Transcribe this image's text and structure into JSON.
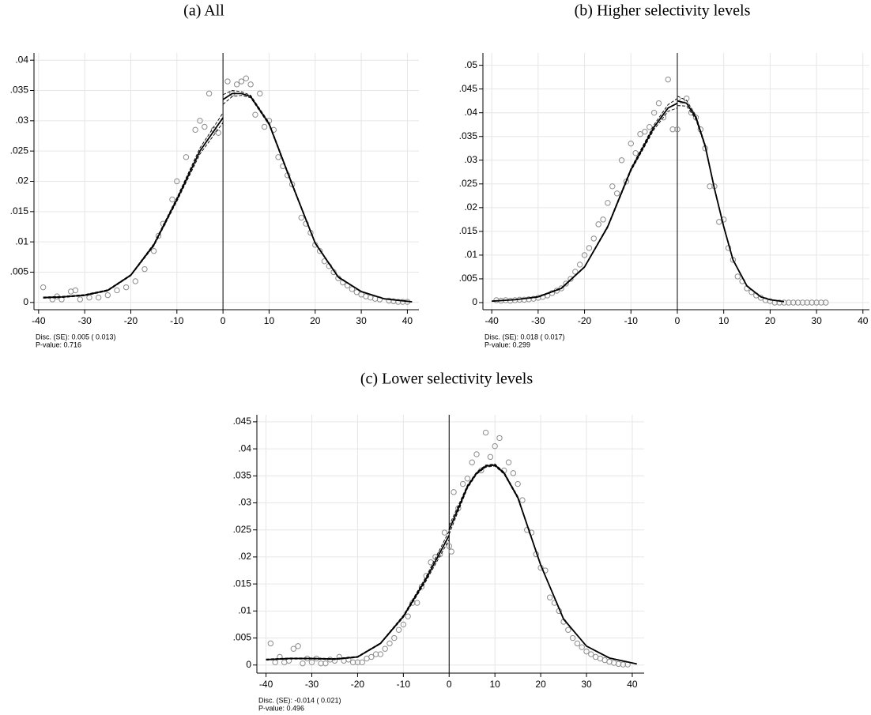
{
  "chart_data": [
    {
      "type": "scatter",
      "title": "(a) All",
      "notes": [
        "Disc. (SE):  0.005 ( 0.013)",
        "P-value:  0.716"
      ],
      "xlim": [
        -41,
        42.5
      ],
      "ylim": [
        -0.0012,
        0.0412
      ],
      "xticks": [
        -40,
        -30,
        -20,
        -10,
        0,
        10,
        20,
        30,
        40
      ],
      "yticks": [
        0,
        {
          "value": 0.005,
          "label": ".005"
        },
        {
          "value": 0.01,
          "label": ".01"
        },
        {
          "value": 0.015,
          "label": ".015"
        },
        {
          "value": 0.02,
          "label": ".02"
        },
        {
          "value": 0.025,
          "label": ".025"
        },
        {
          "value": 0.03,
          "label": ".03"
        },
        {
          "value": 0.035,
          "label": ".035"
        },
        {
          "value": 0.04,
          "label": ".04"
        }
      ],
      "grid": true,
      "cutoff": 0,
      "points": {
        "color": "#8c8c8c",
        "x": [
          -39,
          -37,
          -36,
          -35,
          -33,
          -32,
          -31,
          -29,
          -27,
          -25,
          -23,
          -21,
          -19,
          -17,
          -15,
          -14,
          -13,
          -11,
          -10,
          -8,
          -6,
          -5,
          -4,
          -3,
          -2,
          -1,
          1,
          2,
          3,
          4,
          5,
          6,
          7,
          8,
          9,
          10,
          11,
          12,
          13,
          14,
          15,
          17,
          18,
          19,
          20,
          21,
          22,
          23,
          24,
          25,
          26,
          27,
          28,
          29,
          30,
          31,
          32,
          33,
          34,
          36,
          37,
          38,
          39,
          40
        ],
        "y": [
          0.0025,
          0.0005,
          0.001,
          0.0005,
          0.0018,
          0.002,
          0.0005,
          0.0008,
          0.0008,
          0.0012,
          0.002,
          0.0025,
          0.0035,
          0.0055,
          0.0085,
          0.011,
          0.013,
          0.017,
          0.02,
          0.024,
          0.0285,
          0.03,
          0.029,
          0.0345,
          0.0285,
          0.028,
          0.0365,
          0.0345,
          0.036,
          0.0365,
          0.037,
          0.036,
          0.031,
          0.0345,
          0.029,
          0.03,
          0.0285,
          0.024,
          0.0225,
          0.021,
          0.0195,
          0.014,
          0.013,
          0.0115,
          0.0095,
          0.0085,
          0.0068,
          0.006,
          0.005,
          0.004,
          0.0033,
          0.0028,
          0.0022,
          0.0017,
          0.0013,
          0.001,
          0.0008,
          0.0006,
          0.0005,
          0.0003,
          0.0002,
          0.0001,
          0.0001,
          0.0001
        ]
      },
      "fits": [
        {
          "color": "#000000",
          "x": [
            -39,
            -35,
            -30,
            -25,
            -20,
            -15,
            -10,
            -5,
            0
          ],
          "values": [
            0.0008,
            0.0009,
            0.0012,
            0.002,
            0.0045,
            0.0095,
            0.017,
            0.025,
            0.0305
          ],
          "lower": [
            0.0007,
            0.0008,
            0.0011,
            0.0019,
            0.0044,
            0.0093,
            0.0167,
            0.0245,
            0.0297
          ],
          "upper": [
            0.0009,
            0.001,
            0.0013,
            0.0021,
            0.0046,
            0.0097,
            0.0173,
            0.0255,
            0.0313
          ]
        },
        {
          "color": "#000000",
          "x": [
            0,
            2,
            4,
            6,
            10,
            15,
            20,
            25,
            30,
            35,
            41
          ],
          "values": [
            0.0335,
            0.0345,
            0.0345,
            0.034,
            0.0295,
            0.0195,
            0.0098,
            0.0042,
            0.0018,
            0.0006,
            0.0001
          ],
          "lower": [
            0.0327,
            0.034,
            0.0342,
            0.0338,
            0.0293,
            0.0193,
            0.0097,
            0.0041,
            0.0018,
            0.0006,
            0.0001
          ],
          "upper": [
            0.0343,
            0.035,
            0.0348,
            0.0342,
            0.0297,
            0.0197,
            0.0099,
            0.0043,
            0.0018,
            0.0006,
            0.0001
          ]
        }
      ]
    },
    {
      "type": "scatter",
      "title": "(b) Higher selectivity levels",
      "notes": [
        "Disc. (SE):  0.018 ( 0.017)",
        "P-value:  0.299"
      ],
      "xlim": [
        -41.9,
        41.4
      ],
      "ylim": [
        -0.0015,
        0.0526
      ],
      "xticks": [
        -40,
        -30,
        -20,
        -10,
        0,
        10,
        20,
        30,
        40
      ],
      "yticks": [
        0,
        {
          "value": 0.005,
          "label": ".005"
        },
        {
          "value": 0.01,
          "label": ".01"
        },
        {
          "value": 0.015,
          "label": ".015"
        },
        {
          "value": 0.02,
          "label": ".02"
        },
        {
          "value": 0.025,
          "label": ".025"
        },
        {
          "value": 0.03,
          "label": ".03"
        },
        {
          "value": 0.035,
          "label": ".035"
        },
        {
          "value": 0.04,
          "label": ".04"
        },
        {
          "value": 0.045,
          "label": ".045"
        },
        {
          "value": 0.05,
          "label": ".05"
        }
      ],
      "grid": true,
      "cutoff": 0,
      "points": {
        "color": "#8c8c8c",
        "x": [
          -39,
          -38,
          -37,
          -36,
          -35,
          -34,
          -33,
          -32,
          -31,
          -30,
          -29,
          -28,
          -27,
          -26,
          -25,
          -24,
          -23,
          -22,
          -21,
          -20,
          -19,
          -18,
          -17,
          -16,
          -15,
          -14,
          -13,
          -12,
          -11,
          -10,
          -9,
          -8,
          -7,
          -6,
          -5,
          -4,
          -3,
          -2,
          -1,
          0,
          1,
          2,
          3,
          4,
          5,
          6,
          7,
          8,
          9,
          10,
          11,
          12,
          13,
          14,
          15,
          16,
          17,
          18,
          19,
          20,
          21,
          22,
          23,
          24,
          25,
          26,
          27,
          28,
          29,
          30,
          31,
          32
        ],
        "y": [
          0.0005,
          0.0004,
          0.0005,
          0.0004,
          0.0005,
          0.0006,
          0.0006,
          0.0007,
          0.0008,
          0.001,
          0.0012,
          0.0015,
          0.002,
          0.0025,
          0.003,
          0.004,
          0.005,
          0.0065,
          0.008,
          0.01,
          0.0115,
          0.0135,
          0.0165,
          0.0175,
          0.021,
          0.0245,
          0.023,
          0.03,
          0.0255,
          0.0335,
          0.0315,
          0.0355,
          0.036,
          0.037,
          0.04,
          0.042,
          0.039,
          0.047,
          0.0365,
          0.0365,
          0.0425,
          0.043,
          0.04,
          0.039,
          0.0365,
          0.0325,
          0.0245,
          0.0245,
          0.017,
          0.0175,
          0.0115,
          0.009,
          0.0055,
          0.0045,
          0.003,
          0.0022,
          0.0015,
          0.001,
          0.0005,
          0.0003,
          0,
          0,
          0,
          0,
          0,
          0,
          0,
          0,
          0,
          0,
          0,
          0
        ]
      },
      "fits": [
        {
          "color": "#000000",
          "x": [
            -40,
            -35,
            -30,
            -25,
            -20,
            -15,
            -10,
            -5,
            -2,
            0
          ],
          "values": [
            0.0003,
            0.0006,
            0.0012,
            0.003,
            0.0075,
            0.016,
            0.028,
            0.037,
            0.041,
            0.042
          ],
          "lower": [
            0.0003,
            0.0006,
            0.0011,
            0.0029,
            0.0074,
            0.0158,
            0.0277,
            0.0365,
            0.0403,
            0.041
          ],
          "upper": [
            0.0003,
            0.0006,
            0.0013,
            0.0031,
            0.0076,
            0.0162,
            0.0283,
            0.0375,
            0.0417,
            0.043
          ]
        },
        {
          "color": "#000000",
          "x": [
            0,
            2,
            4,
            6,
            8,
            10,
            12,
            15,
            18,
            20,
            23
          ],
          "values": [
            0.0425,
            0.042,
            0.039,
            0.033,
            0.024,
            0.016,
            0.009,
            0.0035,
            0.0012,
            0.0006,
            0.0002
          ],
          "lower": [
            0.0415,
            0.0414,
            0.0386,
            0.0327,
            0.0238,
            0.0158,
            0.0089,
            0.0034,
            0.0012,
            0.0006,
            0.0002
          ],
          "upper": [
            0.0435,
            0.0426,
            0.0394,
            0.0333,
            0.0242,
            0.0162,
            0.0091,
            0.0036,
            0.0012,
            0.0006,
            0.0002
          ]
        }
      ]
    },
    {
      "type": "scatter",
      "title": "(c) Lower selectivity levels",
      "notes": [
        "Disc. (SE): -0.014 ( 0.021)",
        "P-value:  0.496"
      ],
      "xlim": [
        -42,
        42.6
      ],
      "ylim": [
        -0.0015,
        0.0463
      ],
      "xticks": [
        -40,
        -30,
        -20,
        -10,
        0,
        10,
        20,
        30,
        40
      ],
      "yticks": [
        0,
        {
          "value": 0.005,
          "label": ".005"
        },
        {
          "value": 0.01,
          "label": ".01"
        },
        {
          "value": 0.015,
          "label": ".015"
        },
        {
          "value": 0.02,
          "label": ".02"
        },
        {
          "value": 0.025,
          "label": ".025"
        },
        {
          "value": 0.03,
          "label": ".03"
        },
        {
          "value": 0.035,
          "label": ".035"
        },
        {
          "value": 0.04,
          "label": ".04"
        },
        {
          "value": 0.045,
          "label": ".045"
        }
      ],
      "grid": true,
      "cutoff": 0,
      "points": {
        "color": "#8c8c8c",
        "x": [
          -39,
          -38,
          -37,
          -36,
          -35,
          -34,
          -33,
          -32,
          -31,
          -30,
          -29,
          -28,
          -27,
          -26,
          -25,
          -24,
          -23,
          -22,
          -21,
          -20,
          -19,
          -18,
          -17,
          -16,
          -15,
          -14,
          -13,
          -12,
          -11,
          -10,
          -9,
          -8,
          -7,
          -6,
          -5,
          -4,
          -3,
          -2,
          -1,
          0,
          0.5,
          1,
          2,
          3,
          4,
          5,
          6,
          7,
          8,
          9,
          10,
          11,
          12,
          13,
          14,
          15,
          16,
          17,
          18,
          19,
          20,
          21,
          22,
          23,
          24,
          25,
          26,
          27,
          28,
          29,
          30,
          31,
          32,
          33,
          34,
          35,
          36,
          37,
          38,
          39
        ],
        "y": [
          0.004,
          0.0005,
          0.0015,
          0.0005,
          0.0008,
          0.003,
          0.0035,
          0.0003,
          0.0012,
          0.0005,
          0.0012,
          0.0003,
          0.0003,
          0.001,
          0.0008,
          0.0015,
          0.0008,
          0.001,
          0.0005,
          0.0005,
          0.0005,
          0.0012,
          0.0015,
          0.002,
          0.002,
          0.003,
          0.004,
          0.005,
          0.0065,
          0.0075,
          0.009,
          0.0115,
          0.0115,
          0.0145,
          0.0165,
          0.019,
          0.02,
          0.0205,
          0.0245,
          0.022,
          0.021,
          0.032,
          0.029,
          0.0335,
          0.0345,
          0.0375,
          0.039,
          0.036,
          0.043,
          0.0385,
          0.0405,
          0.042,
          0.036,
          0.0375,
          0.0355,
          0.0335,
          0.0305,
          0.025,
          0.0245,
          0.0205,
          0.018,
          0.0175,
          0.0125,
          0.0115,
          0.01,
          0.008,
          0.0065,
          0.005,
          0.004,
          0.0033,
          0.0025,
          0.002,
          0.0015,
          0.0012,
          0.0009,
          0.0006,
          0.0004,
          0.0002,
          0.0001,
          0.0001
        ]
      },
      "fits": [
        {
          "color": "#000000",
          "x": [
            -40,
            -35,
            -30,
            -25,
            -20,
            -15,
            -10,
            -5,
            0
          ],
          "values": [
            0.001,
            0.0012,
            0.0012,
            0.0011,
            0.0015,
            0.004,
            0.009,
            0.016,
            0.024
          ],
          "lower": [
            0.0009,
            0.0011,
            0.0011,
            0.001,
            0.0014,
            0.0039,
            0.0088,
            0.0156,
            0.0232
          ],
          "upper": [
            0.0011,
            0.0013,
            0.0013,
            0.0012,
            0.0016,
            0.0041,
            0.0092,
            0.0164,
            0.0248
          ]
        },
        {
          "color": "#000000",
          "x": [
            0,
            2,
            4,
            6,
            8,
            10,
            12,
            15,
            20,
            25,
            30,
            35,
            41
          ],
          "values": [
            0.025,
            0.029,
            0.033,
            0.0355,
            0.0368,
            0.037,
            0.0355,
            0.031,
            0.0185,
            0.0085,
            0.0035,
            0.0013,
            0.0002
          ],
          "lower": [
            0.0242,
            0.0285,
            0.0327,
            0.0353,
            0.0366,
            0.0368,
            0.0353,
            0.0308,
            0.0184,
            0.0084,
            0.0035,
            0.0013,
            0.0002
          ],
          "upper": [
            0.0258,
            0.0295,
            0.0333,
            0.0357,
            0.037,
            0.0372,
            0.0357,
            0.0312,
            0.0186,
            0.0086,
            0.0035,
            0.0013,
            0.0002
          ]
        }
      ]
    }
  ]
}
